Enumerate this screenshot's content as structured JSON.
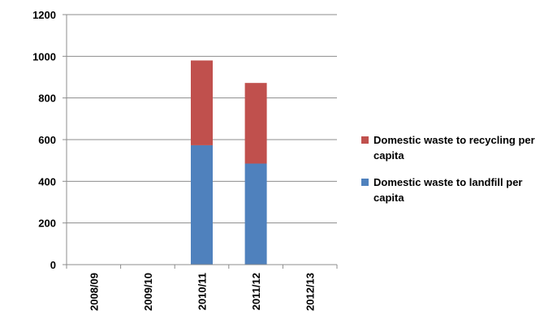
{
  "chart_data": {
    "type": "bar",
    "stacked": true,
    "categories": [
      "2008/09",
      "2009/10",
      "2010/11",
      "2011/12",
      "2012/13"
    ],
    "series": [
      {
        "name": "Domestic waste to landfill per capita",
        "color": "#4f81bd",
        "values": [
          0,
          0,
          573,
          485,
          0
        ]
      },
      {
        "name": "Domestic waste to recycling per capita",
        "color": "#c0504d",
        "values": [
          0,
          0,
          407,
          387,
          0
        ]
      }
    ],
    "y_ticks": [
      "0",
      "200",
      "400",
      "600",
      "800",
      "1000",
      "1200"
    ],
    "ylim": [
      0,
      1200
    ],
    "grid": true,
    "legend_position": "right",
    "legend_order": [
      1,
      0
    ]
  }
}
